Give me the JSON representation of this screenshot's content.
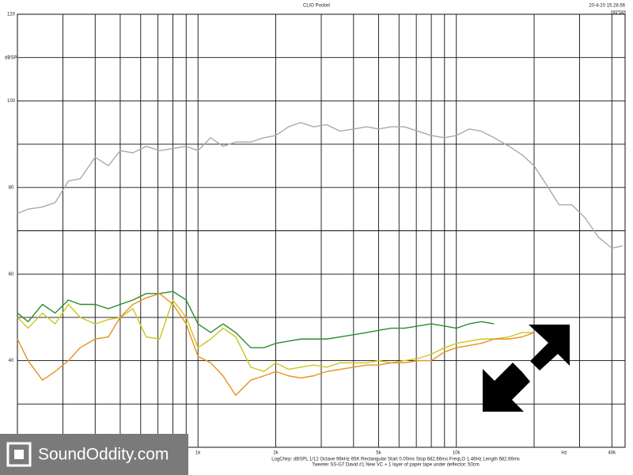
{
  "chart_data": {
    "type": "line",
    "title": "CLIO Pocket",
    "timestamp": "20-4-20 15.28.56",
    "brand": "CLIO",
    "ylabel": "dBSPL",
    "xlabel": "Hz",
    "footer": [
      "LogChirp: dBSPL   1/12 Octave   96kHz   65K   Rectangular   Start 0.00ms   Stop 682.66ms   FreqLO 1.46Hz   Length 682.66ms",
      "Tweeter SS-G7 David #1 New VC + 1 layer of paper tape under deflector; 50cm"
    ],
    "xscale": "log",
    "xlim": [
      200,
      45000
    ],
    "ylim": [
      20,
      120
    ],
    "yticks": [
      40,
      60,
      80,
      100,
      120
    ],
    "ygrid_minor": [
      20,
      30,
      50,
      70,
      90,
      110
    ],
    "xticks": [
      {
        "value": 1000,
        "label": "1k"
      },
      {
        "value": 2000,
        "label": "2k"
      },
      {
        "value": 5000,
        "label": "5k"
      },
      {
        "value": 10000,
        "label": "10k"
      },
      {
        "value": 40000,
        "label": "40k"
      }
    ],
    "xgrid_minor": [
      200,
      300,
      400,
      500,
      600,
      700,
      800,
      900,
      3000,
      4000,
      6000,
      7000,
      8000,
      9000,
      20000,
      30000
    ],
    "grid": true,
    "x": [
      200,
      220,
      250,
      280,
      315,
      350,
      400,
      450,
      500,
      560,
      630,
      710,
      800,
      900,
      1000,
      1120,
      1250,
      1400,
      1600,
      1800,
      2000,
      2240,
      2500,
      2800,
      3150,
      3550,
      4000,
      4500,
      5000,
      5600,
      6300,
      7100,
      8000,
      9000,
      10000,
      11200,
      12500,
      14000,
      16000,
      18000,
      20000,
      22400,
      25000,
      28000,
      31500,
      35500,
      40000,
      44000
    ],
    "series": [
      {
        "color": "#aaaaaa",
        "values": [
          74,
          75,
          75.5,
          76.5,
          81.5,
          82,
          87,
          85,
          88.5,
          88,
          89.5,
          88.5,
          89,
          89.5,
          88.5,
          91.5,
          89.5,
          90.5,
          90.5,
          91.5,
          92,
          94,
          95,
          94,
          94.5,
          93,
          93.5,
          94,
          93.5,
          94,
          94,
          93,
          92,
          91.5,
          92,
          93.5,
          93,
          91.5,
          89.5,
          87.5,
          85,
          80.5,
          76,
          76,
          73,
          68.5,
          66,
          66.5
        ]
      },
      {
        "color": "#2e8b2e",
        "values": [
          51,
          49,
          53,
          51,
          54,
          53,
          53,
          52,
          53,
          54,
          55.5,
          55.5,
          56,
          54,
          48.5,
          46.5,
          48.5,
          46.5,
          43,
          43,
          44,
          44.5,
          45,
          45,
          45,
          45.5,
          46,
          46.5,
          47,
          47.5,
          47.5,
          48,
          48.5,
          48,
          47.5,
          48.5,
          49,
          48.5,
          null,
          null,
          null,
          null,
          null,
          null,
          null,
          null,
          null,
          null
        ]
      },
      {
        "color": "#c8c820",
        "values": [
          50,
          47.5,
          51,
          48.5,
          53,
          50,
          48.5,
          49.5,
          50,
          52,
          45.5,
          45,
          54,
          50,
          43,
          45,
          47.5,
          45.5,
          38.5,
          37.5,
          39.5,
          38,
          38.5,
          39,
          38.5,
          39.5,
          39.5,
          39.5,
          40,
          39.5,
          40,
          40.5,
          41.5,
          43,
          44,
          44.5,
          45,
          45,
          45.5,
          46.5,
          46.5,
          null,
          null,
          null,
          null,
          null,
          null,
          null
        ]
      },
      {
        "color": "#e8901c",
        "values": [
          45,
          40,
          35.5,
          37.5,
          40,
          43,
          45,
          45.5,
          50,
          53,
          54.5,
          55.5,
          53,
          48.5,
          41,
          39.5,
          36.5,
          32,
          35.5,
          36.5,
          37.5,
          36.5,
          36,
          36.5,
          37.5,
          38,
          38.5,
          39,
          39,
          39.5,
          39.5,
          40,
          40,
          42,
          43,
          43.5,
          44,
          45,
          45,
          45.5,
          46.5,
          null,
          null,
          null,
          null,
          null,
          null,
          null
        ]
      }
    ]
  },
  "watermark": "SoundOddity.com"
}
